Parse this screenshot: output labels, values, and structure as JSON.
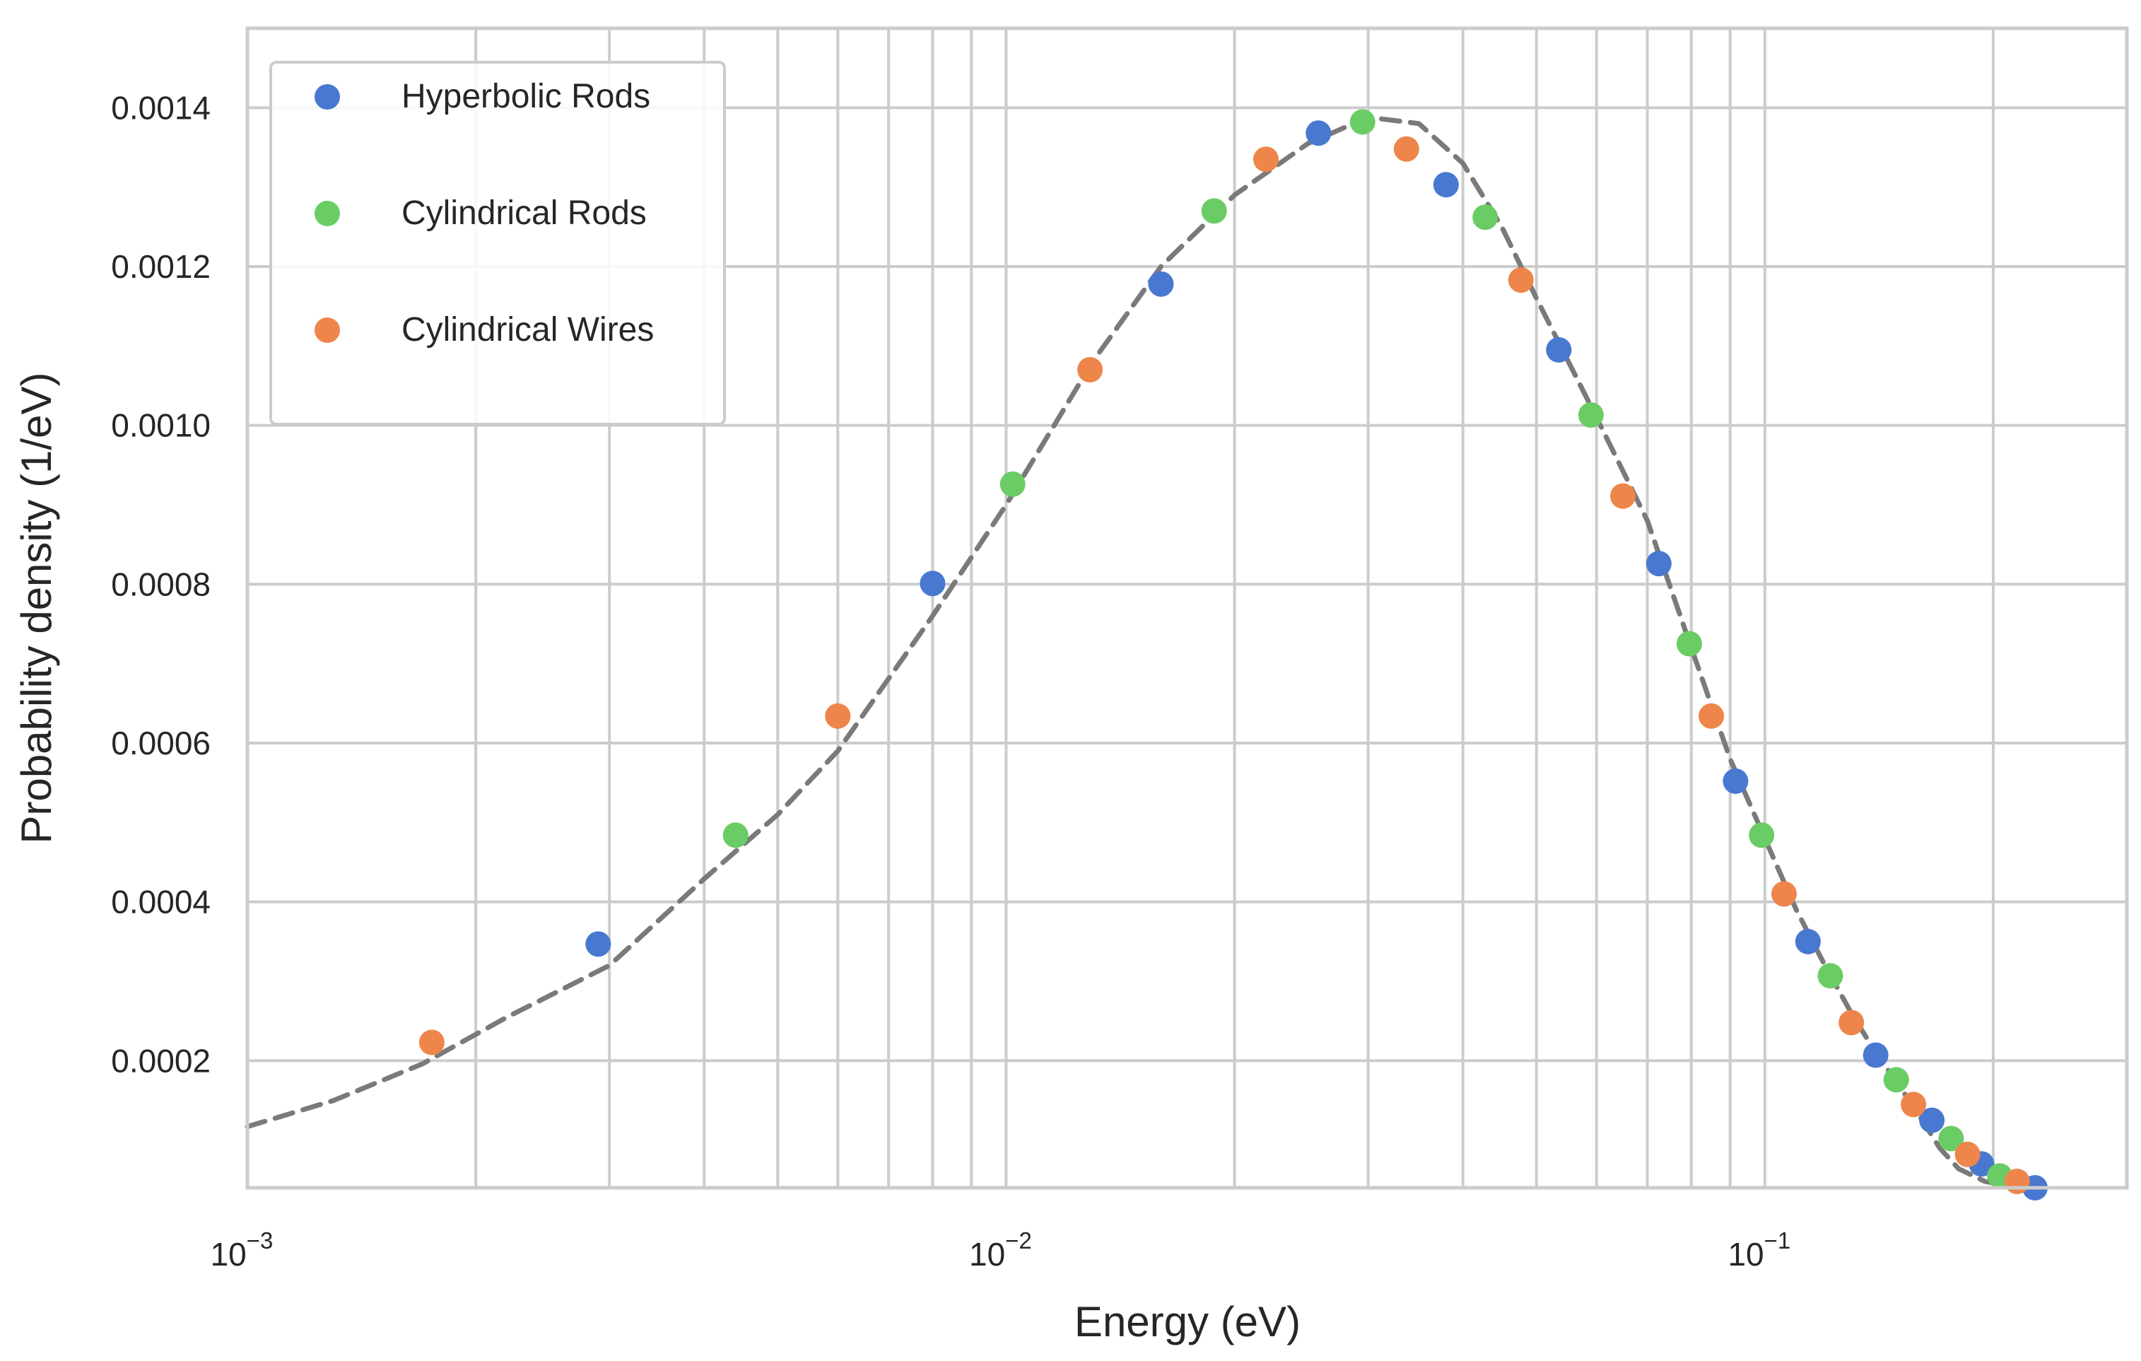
{
  "chart_data": {
    "type": "scatter",
    "title": "",
    "xlabel": "Energy (eV)",
    "ylabel": "Probability density (1/eV)",
    "xscale": "log",
    "xlim": [
      0.001,
      0.3
    ],
    "ylim": [
      4e-05,
      0.0015
    ],
    "grid": true,
    "legend_position": "top-left",
    "x_ticks": [
      {
        "value": 0.001,
        "base": "10",
        "exp": "−3"
      },
      {
        "value": 0.01,
        "base": "10",
        "exp": "−2"
      },
      {
        "value": 0.1,
        "base": "10",
        "exp": "−1"
      }
    ],
    "y_ticks": [
      {
        "value": 0.0002,
        "label": "0.0002"
      },
      {
        "value": 0.0004,
        "label": "0.0004"
      },
      {
        "value": 0.0006,
        "label": "0.0006"
      },
      {
        "value": 0.0008,
        "label": "0.0008"
      },
      {
        "value": 0.001,
        "label": "0.0010"
      },
      {
        "value": 0.0012,
        "label": "0.0012"
      },
      {
        "value": 0.0014,
        "label": "0.0014"
      }
    ],
    "series": [
      {
        "name": "Hyperbolic Rods",
        "color": "#4878d0",
        "points": [
          [
            0.0029,
            0.000347
          ],
          [
            0.008,
            0.000801
          ],
          [
            0.016,
            0.001178
          ],
          [
            0.0258,
            0.001368
          ],
          [
            0.038,
            0.001303
          ],
          [
            0.0535,
            0.001095
          ],
          [
            0.0725,
            0.000826
          ],
          [
            0.0915,
            0.000552
          ],
          [
            0.114,
            0.00035
          ],
          [
            0.14,
            0.000207
          ],
          [
            0.166,
            0.000125
          ],
          [
            0.193,
            7e-05
          ],
          [
            0.227,
            4e-05
          ]
        ]
      },
      {
        "name": "Cylindrical Rods",
        "color": "#6acc64",
        "points": [
          [
            0.0044,
            0.000484
          ],
          [
            0.0102,
            0.000926
          ],
          [
            0.0188,
            0.00127
          ],
          [
            0.0295,
            0.001382
          ],
          [
            0.0428,
            0.001262
          ],
          [
            0.059,
            0.001013
          ],
          [
            0.0795,
            0.000725
          ],
          [
            0.099,
            0.000484
          ],
          [
            0.122,
            0.000307
          ],
          [
            0.149,
            0.000176
          ],
          [
            0.176,
            0.000102
          ],
          [
            0.204,
            5.5e-05
          ]
        ]
      },
      {
        "name": "Cylindrical Wires",
        "color": "#ee854a",
        "points": [
          [
            0.00175,
            0.000223
          ],
          [
            0.006,
            0.000634
          ],
          [
            0.0129,
            0.00107
          ],
          [
            0.022,
            0.001335
          ],
          [
            0.0337,
            0.001348
          ],
          [
            0.0477,
            0.001183
          ],
          [
            0.065,
            0.000911
          ],
          [
            0.085,
            0.000634
          ],
          [
            0.106,
            0.00041
          ],
          [
            0.13,
            0.000248
          ],
          [
            0.157,
            0.000145
          ],
          [
            0.185,
            8.2e-05
          ],
          [
            0.215,
            4.8e-05
          ]
        ]
      }
    ],
    "fit_curve": {
      "style": "dashed",
      "color": "#7a7a7a",
      "points": [
        [
          0.001,
          0.000117
        ],
        [
          0.0013,
          0.00015
        ],
        [
          0.0017,
          0.000196
        ],
        [
          0.0022,
          0.000255
        ],
        [
          0.003,
          0.00032
        ],
        [
          0.004,
          0.000429
        ],
        [
          0.005,
          0.00051
        ],
        [
          0.006,
          0.00059
        ],
        [
          0.008,
          0.00076
        ],
        [
          0.01,
          0.0009
        ],
        [
          0.013,
          0.00108
        ],
        [
          0.016,
          0.0012
        ],
        [
          0.02,
          0.00129
        ],
        [
          0.025,
          0.001355
        ],
        [
          0.03,
          0.001388
        ],
        [
          0.035,
          0.00138
        ],
        [
          0.04,
          0.00133
        ],
        [
          0.045,
          0.00125
        ],
        [
          0.05,
          0.00116
        ],
        [
          0.06,
          0.00101
        ],
        [
          0.07,
          0.00088
        ],
        [
          0.08,
          0.00072
        ],
        [
          0.09,
          0.00058
        ],
        [
          0.1,
          0.00048
        ],
        [
          0.11,
          0.00039
        ],
        [
          0.12,
          0.00032
        ],
        [
          0.13,
          0.00026
        ],
        [
          0.14,
          0.00021
        ],
        [
          0.15,
          0.00017
        ],
        [
          0.16,
          0.00013
        ],
        [
          0.17,
          9e-05
        ],
        [
          0.18,
          6.4e-05
        ],
        [
          0.195,
          4.8e-05
        ],
        [
          0.21,
          4.2e-05
        ]
      ]
    }
  }
}
